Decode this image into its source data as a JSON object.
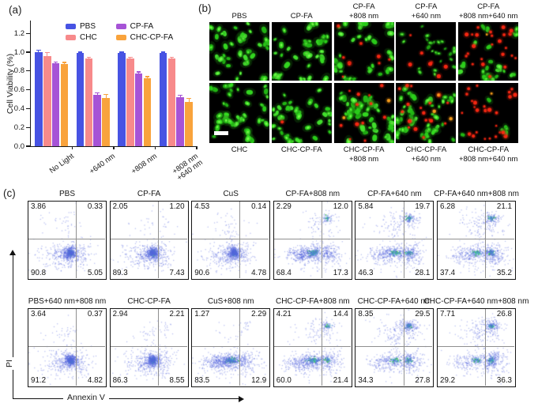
{
  "panel_a": {
    "label": "(a)",
    "chart_data": {
      "type": "bar",
      "ylabel": "Cell Viability (%)",
      "yticks": [
        0.0,
        0.2,
        0.4,
        0.6,
        0.8,
        1.0,
        1.2
      ],
      "ylim": [
        0,
        1.32
      ],
      "grid": false,
      "legend_position": "top-inside",
      "categories": [
        [
          "No Light"
        ],
        [
          "+640 nm"
        ],
        [
          "+808 nm"
        ],
        [
          "+808 nm",
          "+640 nm"
        ]
      ],
      "series": [
        {
          "name": "PBS",
          "color": "#4753e3",
          "values": [
            1.0,
            0.99,
            0.99,
            0.99
          ],
          "errors": [
            0.02,
            0.01,
            0.01,
            0.01
          ]
        },
        {
          "name": "CHC",
          "color": "#f78a8b",
          "values": [
            0.96,
            0.93,
            0.93,
            0.93
          ],
          "errors": [
            0.035,
            0.015,
            0.015,
            0.015
          ]
        },
        {
          "name": "CP-FA",
          "color": "#a653d6",
          "values": [
            0.88,
            0.55,
            0.77,
            0.52
          ],
          "errors": [
            0.015,
            0.02,
            0.02,
            0.02
          ]
        },
        {
          "name": "CHC-CP-FA",
          "color": "#f9a33c",
          "values": [
            0.87,
            0.51,
            0.72,
            0.47
          ],
          "errors": [
            0.02,
            0.04,
            0.02,
            0.04
          ]
        }
      ]
    }
  },
  "panel_b": {
    "label": "(b)",
    "top_labels": [
      [
        "PBS"
      ],
      [
        "CP-FA"
      ],
      [
        "CP-FA",
        "+808 nm"
      ],
      [
        "CP-FA",
        "+640 nm"
      ],
      [
        "CP-FA",
        "+808 nm+640 nm"
      ]
    ],
    "bottom_labels": [
      [
        "CHC"
      ],
      [
        "CHC-CP-FA"
      ],
      [
        "CHC-CP-FA",
        "+808 nm"
      ],
      [
        "CHC-CP-FA",
        "+640 nm"
      ],
      [
        "CHC-CP-FA",
        "+808 nm+640 nm"
      ]
    ],
    "cells_top": [
      {
        "green": 42,
        "red": 0,
        "orange": 0,
        "dim": false
      },
      {
        "green": 40,
        "red": 0,
        "orange": 0,
        "dim": false
      },
      {
        "green": 38,
        "red": 9,
        "orange": 0,
        "dim": false
      },
      {
        "green": 28,
        "red": 7,
        "orange": 0,
        "dim": true
      },
      {
        "green": 30,
        "red": 24,
        "orange": 1,
        "dim": false
      }
    ],
    "cells_bottom": [
      {
        "green": 45,
        "red": 0,
        "orange": 0,
        "dim": false
      },
      {
        "green": 42,
        "red": 1,
        "orange": 0,
        "dim": false
      },
      {
        "green": 48,
        "red": 12,
        "orange": 2,
        "dim": false
      },
      {
        "green": 52,
        "red": 18,
        "orange": 3,
        "dim": false
      },
      {
        "green": 6,
        "red": 26,
        "orange": 1,
        "dim": false
      }
    ],
    "scale_bar_color": "#ffffff"
  },
  "panel_c": {
    "label": "(c)",
    "xlabel": "Annexin V",
    "ylabel": "PI",
    "chart_data": {
      "type": "scatter",
      "description": "flow cytometry quadrant plots, quadrant percentages tl/tr/bl/br",
      "dot_color": "#5566dd",
      "core_color": "#35c440",
      "plots_row1": [
        {
          "title": "PBS",
          "tl": "3.86",
          "tr": "0.33",
          "bl": "90.8",
          "br": "5.05"
        },
        {
          "title": "CP-FA",
          "tl": "2.05",
          "tr": "1.20",
          "bl": "89.3",
          "br": "7.43"
        },
        {
          "title": "CuS",
          "tl": "4.53",
          "tr": "0.14",
          "bl": "90.6",
          "br": "4.78"
        },
        {
          "title": "CP-FA+808 nm",
          "tl": "2.29",
          "tr": "12.0",
          "bl": "68.4",
          "br": "17.3"
        },
        {
          "title": "CP-FA+640 nm",
          "tl": "5.84",
          "tr": "19.7",
          "bl": "46.3",
          "br": "28.1"
        },
        {
          "title": "CP-FA+640 nm+808 nm",
          "tl": "6.28",
          "tr": "21.1",
          "bl": "37.4",
          "br": "35.2"
        }
      ],
      "plots_row2": [
        {
          "title": "PBS+640 nm+808 nm",
          "tl": "3.64",
          "tr": "0.37",
          "bl": "91.2",
          "br": "4.82"
        },
        {
          "title": "CHC-CP-FA",
          "tl": "2.94",
          "tr": "2.21",
          "bl": "86.3",
          "br": "8.55"
        },
        {
          "title": "CuS+808 nm",
          "tl": "1.27",
          "tr": "2.29",
          "bl": "83.5",
          "br": "12.9"
        },
        {
          "title": "CHC-CP-FA+808 nm",
          "tl": "4.21",
          "tr": "14.4",
          "bl": "60.0",
          "br": "21.4"
        },
        {
          "title": "CHC-CP-FA+640 nm",
          "tl": "8.35",
          "tr": "29.5",
          "bl": "34.3",
          "br": "27.8"
        },
        {
          "title": "CHC-CP-FA+640 nm+808 nm",
          "tl": "7.71",
          "tr": "26.8",
          "bl": "29.2",
          "br": "36.3"
        }
      ]
    }
  }
}
